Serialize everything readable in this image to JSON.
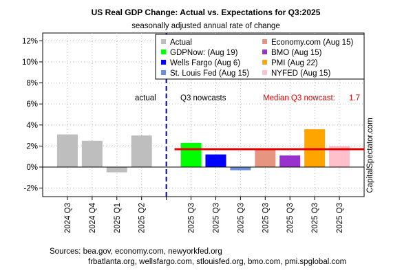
{
  "chart_data": {
    "type": "bar",
    "title": "US Real GDP Change: Actual vs. Expectations for Q3:2025",
    "subtitle": "seasonally adjusted annual rate of change",
    "ylim": [
      -3,
      12.5
    ],
    "yticks": [
      -2,
      0,
      2,
      4,
      6,
      8,
      10,
      12
    ],
    "ytick_labels": [
      "-2%",
      "0%",
      "2%",
      "4%",
      "6%",
      "8%",
      "10%",
      "12%"
    ],
    "grid": true,
    "categories": [
      "2024 Q3",
      "2024 Q4",
      "2025 Q1",
      "2025 Q2",
      "2025 Q3",
      "2025 Q3",
      "2025 Q3",
      "2025 Q3",
      "2025 Q3",
      "2025 Q3",
      "2025 Q3"
    ],
    "values": [
      3.1,
      2.5,
      -0.5,
      3.0,
      2.3,
      1.2,
      -0.3,
      1.7,
      1.1,
      3.6,
      2.0
    ],
    "bar_series": [
      "Actual",
      "Actual",
      "Actual",
      "Actual",
      "GDPNow: (Aug 19)",
      "Wells Fargo (Aug 6)",
      "St. Louis Fed (Aug 15)",
      "Economy.com (Aug 15)",
      "BMO (Aug 15)",
      "PMI (Aug 22)",
      "NYFED (Aug 15)"
    ],
    "series": [
      {
        "name": "Actual",
        "color": "#bebebe"
      },
      {
        "name": "GDPNow: (Aug 19)",
        "color": "#00ff00"
      },
      {
        "name": "Wells Fargo (Aug 6)",
        "color": "#0000ff"
      },
      {
        "name": "St. Louis Fed (Aug 15)",
        "color": "#6a8fd8"
      },
      {
        "name": "Economy.com (Aug 15)",
        "color": "#e59580"
      },
      {
        "name": "BMO (Aug 15)",
        "color": "#9932cc"
      },
      {
        "name": "PMI (Aug 22)",
        "color": "#ffa500"
      },
      {
        "name": "NYFED (Aug 15)",
        "color": "#ffc0cb"
      }
    ],
    "legend_position": "top-right",
    "median": {
      "label": "Median Q3 nowcast:",
      "value": 1.7,
      "value_label": "1.7",
      "color": "#e00000"
    },
    "annotations": {
      "actual": "actual",
      "nowcasts": "Q3 nowcasts"
    },
    "divider_color": "#0000b0",
    "sources": [
      "Sources: bea.gov, economy.com, newyorkfed.org",
      "frbatlanta.org, wellsfargo.com, stlouisfed.org, bmo.com, pmi.spglobal.com"
    ],
    "watermark": "CapitalSpectator.com"
  }
}
